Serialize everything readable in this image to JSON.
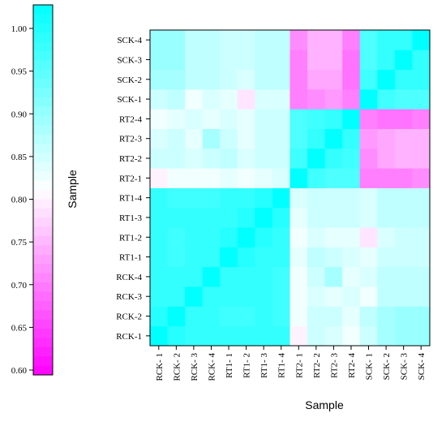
{
  "chart_data": {
    "type": "heatmap",
    "x_labels": [
      "RCK- 1",
      "RCK- 2",
      "RCK- 3",
      "RCK- 4",
      "RT1- 1",
      "RT1- 2",
      "RT1- 3",
      "RT1- 4",
      "RT2- 1",
      "RT2- 2",
      "RT2- 3",
      "RT2- 4",
      "SCK- 1",
      "SCK- 2",
      "SCK- 3",
      "SCK- 4"
    ],
    "y_labels": [
      "RCK-1",
      "RCK-2",
      "RCK-3",
      "RCK-4",
      "RT1-1",
      "RT1-2",
      "RT1-3",
      "RT1-4",
      "RT2-1",
      "RT2-2",
      "RT2-3",
      "RT2-4",
      "SCK-1",
      "SCK-2",
      "SCK-3",
      "SCK-4"
    ],
    "xlabel": "Sample",
    "ylabel": "Sample",
    "colorbar": {
      "min": 0.6,
      "max": 1.0,
      "ticks": [
        "0.60",
        "0.65",
        "0.70",
        "0.75",
        "0.80",
        "0.85",
        "0.90",
        "0.95",
        "1.00"
      ],
      "low_color": "#ff00ff",
      "mid_color": "#ffffff",
      "high_color": "#00ffff"
    },
    "values": [
      [
        1.0,
        0.97,
        0.96,
        0.96,
        0.96,
        0.96,
        0.96,
        0.96,
        0.79,
        0.84,
        0.83,
        0.81,
        0.84,
        0.87,
        0.88,
        0.88
      ],
      [
        0.97,
        1.0,
        0.96,
        0.96,
        0.95,
        0.95,
        0.96,
        0.95,
        0.81,
        0.84,
        0.84,
        0.82,
        0.85,
        0.87,
        0.88,
        0.88
      ],
      [
        0.96,
        0.96,
        1.0,
        0.96,
        0.96,
        0.96,
        0.96,
        0.95,
        0.81,
        0.83,
        0.82,
        0.83,
        0.81,
        0.85,
        0.85,
        0.85
      ],
      [
        0.96,
        0.96,
        0.96,
        1.0,
        0.96,
        0.96,
        0.96,
        0.95,
        0.81,
        0.84,
        0.87,
        0.82,
        0.83,
        0.85,
        0.85,
        0.85
      ],
      [
        0.96,
        0.95,
        0.96,
        0.96,
        1.0,
        0.97,
        0.96,
        0.96,
        0.82,
        0.85,
        0.84,
        0.83,
        0.82,
        0.84,
        0.84,
        0.84
      ],
      [
        0.96,
        0.95,
        0.96,
        0.96,
        0.97,
        1.0,
        0.97,
        0.96,
        0.81,
        0.83,
        0.82,
        0.82,
        0.78,
        0.83,
        0.84,
        0.84
      ],
      [
        0.96,
        0.96,
        0.96,
        0.96,
        0.96,
        0.97,
        1.0,
        0.97,
        0.82,
        0.84,
        0.84,
        0.84,
        0.83,
        0.85,
        0.85,
        0.85
      ],
      [
        0.96,
        0.95,
        0.95,
        0.95,
        0.96,
        0.96,
        0.97,
        1.0,
        0.83,
        0.84,
        0.84,
        0.84,
        0.83,
        0.85,
        0.85,
        0.85
      ],
      [
        0.79,
        0.81,
        0.81,
        0.81,
        0.82,
        0.81,
        0.82,
        0.83,
        1.0,
        0.95,
        0.94,
        0.94,
        0.7,
        0.7,
        0.7,
        0.71
      ],
      [
        0.84,
        0.84,
        0.83,
        0.84,
        0.85,
        0.83,
        0.84,
        0.84,
        0.95,
        1.0,
        0.96,
        0.95,
        0.71,
        0.73,
        0.74,
        0.74
      ],
      [
        0.83,
        0.84,
        0.82,
        0.87,
        0.84,
        0.82,
        0.84,
        0.84,
        0.94,
        0.96,
        1.0,
        0.96,
        0.72,
        0.73,
        0.74,
        0.74
      ],
      [
        0.81,
        0.82,
        0.83,
        0.82,
        0.83,
        0.82,
        0.84,
        0.84,
        0.94,
        0.95,
        0.96,
        1.0,
        0.7,
        0.69,
        0.69,
        0.7
      ],
      [
        0.84,
        0.85,
        0.81,
        0.83,
        0.82,
        0.78,
        0.83,
        0.83,
        0.7,
        0.71,
        0.72,
        0.7,
        1.0,
        0.95,
        0.94,
        0.94
      ],
      [
        0.87,
        0.87,
        0.85,
        0.85,
        0.84,
        0.83,
        0.85,
        0.85,
        0.7,
        0.73,
        0.73,
        0.69,
        0.95,
        1.0,
        0.96,
        0.96
      ],
      [
        0.88,
        0.88,
        0.85,
        0.85,
        0.84,
        0.84,
        0.85,
        0.85,
        0.7,
        0.74,
        0.74,
        0.69,
        0.94,
        0.96,
        1.0,
        0.96
      ],
      [
        0.88,
        0.88,
        0.85,
        0.85,
        0.84,
        0.84,
        0.85,
        0.85,
        0.71,
        0.74,
        0.74,
        0.7,
        0.94,
        0.96,
        0.96,
        1.0
      ]
    ]
  }
}
